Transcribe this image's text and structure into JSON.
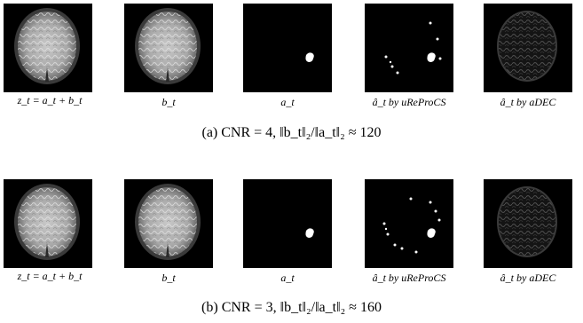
{
  "rows": [
    {
      "labels": [
        "z_t = a_t + b_t",
        "b_t",
        "a_t",
        "â_t by uReProCS",
        "â_t by aDEC"
      ],
      "caption": "(a) CNR = 4, ‖b_t‖₂/‖a_t‖₂ ≈ 120"
    },
    {
      "labels": [
        "z_t = a_t + b_t",
        "b_t",
        "a_t",
        "â_t by uReProCS",
        "â_t by aDEC"
      ],
      "caption": "(b) CNR = 3, ‖b_t‖₂/‖a_t‖₂ ≈ 160"
    }
  ]
}
